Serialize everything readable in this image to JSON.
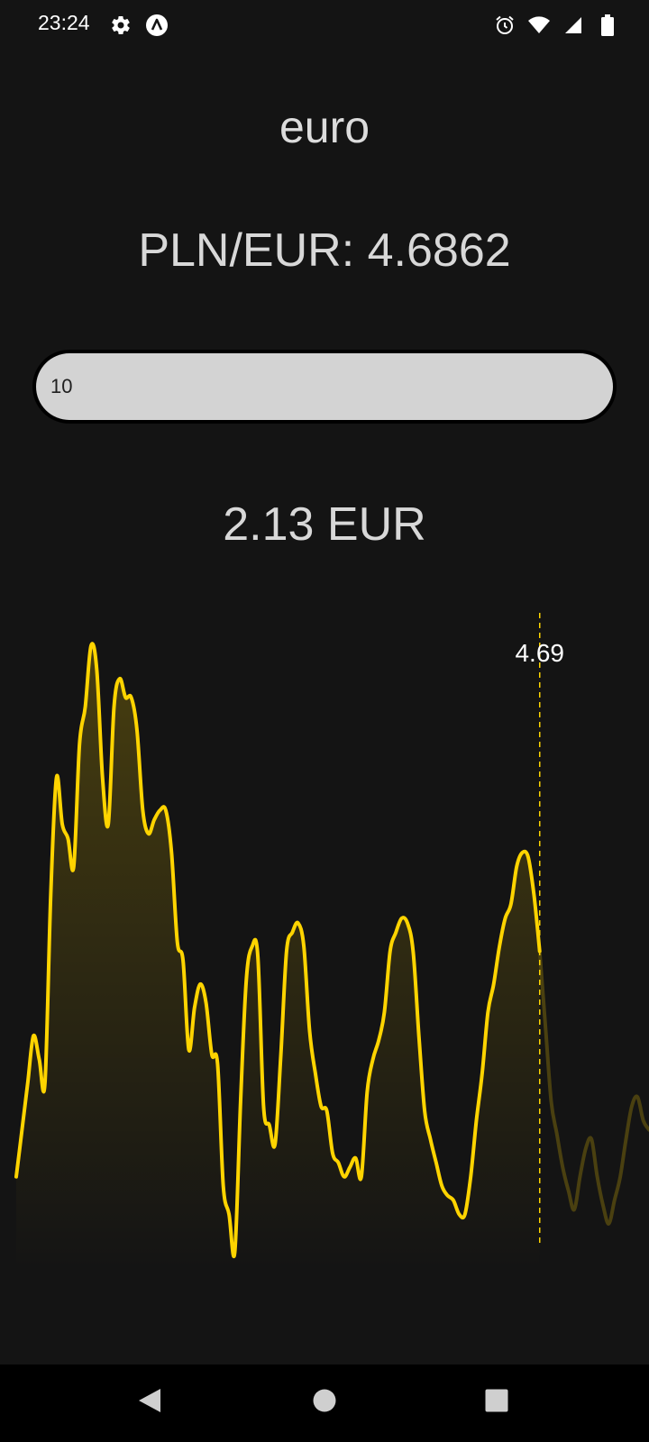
{
  "status_bar": {
    "time": "23:24",
    "left_icons": [
      "gear-icon",
      "app-notification-icon"
    ],
    "right_icons": [
      "alarm-icon",
      "wifi-icon",
      "signal-icon",
      "battery-icon"
    ]
  },
  "header": {
    "title": "euro"
  },
  "rate": {
    "label": "PLN/EUR: 4.6862"
  },
  "input": {
    "value": "10"
  },
  "result": {
    "text": "2.13 EUR"
  },
  "chart_data": {
    "type": "line",
    "cursor_label": "4.69",
    "line_color": "#ffd400",
    "x": [
      0,
      1,
      2,
      3,
      4,
      5,
      6,
      7,
      8,
      9,
      10,
      11,
      12,
      13,
      14,
      15,
      16,
      17,
      18,
      19,
      20,
      21,
      22,
      23,
      24,
      25,
      26,
      27,
      28,
      29,
      30,
      31,
      32,
      33,
      34,
      35,
      36,
      37,
      38,
      39,
      40,
      41,
      42,
      43,
      44,
      45,
      46,
      47,
      48,
      49,
      50,
      51,
      52,
      53,
      54,
      55,
      56,
      57,
      58,
      59,
      60,
      61,
      62,
      63,
      64,
      65,
      66,
      67,
      68,
      69,
      70,
      71,
      72,
      73,
      74,
      75,
      76,
      77,
      78,
      79,
      80,
      81,
      82,
      83,
      84,
      85,
      86,
      87,
      88,
      89,
      90,
      91,
      92,
      93,
      94,
      95,
      96,
      97,
      98,
      99,
      100,
      101,
      102,
      103,
      104,
      105,
      106,
      107,
      108,
      109,
      110
    ],
    "values": [
      4.64,
      4.65,
      4.66,
      4.67,
      4.665,
      4.66,
      4.7,
      4.725,
      4.715,
      4.712,
      4.706,
      4.732,
      4.74,
      4.753,
      4.748,
      4.725,
      4.715,
      4.74,
      4.746,
      4.742,
      4.742,
      4.735,
      4.718,
      4.713,
      4.716,
      4.718,
      4.718,
      4.709,
      4.69,
      4.686,
      4.667,
      4.676,
      4.681,
      4.677,
      4.666,
      4.664,
      4.638,
      4.632,
      4.624,
      4.656,
      4.682,
      4.689,
      4.687,
      4.655,
      4.651,
      4.647,
      4.666,
      4.688,
      4.692,
      4.694,
      4.689,
      4.671,
      4.662,
      4.655,
      4.654,
      4.645,
      4.643,
      4.64,
      4.642,
      4.644,
      4.64,
      4.658,
      4.665,
      4.669,
      4.675,
      4.688,
      4.692,
      4.695,
      4.694,
      4.688,
      4.67,
      4.654,
      4.648,
      4.643,
      4.638,
      4.636,
      4.635,
      4.632,
      4.632,
      4.64,
      4.652,
      4.662,
      4.675,
      4.681,
      4.689,
      4.695,
      4.698,
      4.706,
      4.709,
      4.708,
      4.7,
      4.688,
      4.672,
      4.656,
      4.649,
      4.642,
      4.637,
      4.633,
      4.64,
      4.646,
      4.648,
      4.64,
      4.634,
      4.63,
      4.635,
      4.64,
      4.648,
      4.655,
      4.657,
      4.652,
      4.65
    ],
    "highlight_index": 91,
    "ylim": [
      4.62,
      4.76
    ]
  }
}
